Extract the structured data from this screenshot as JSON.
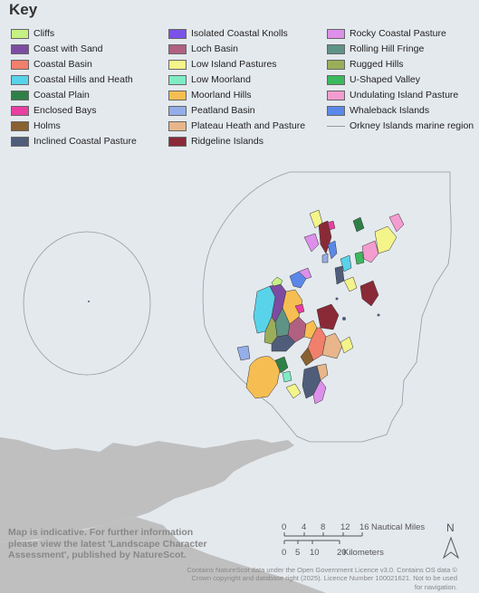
{
  "key": {
    "title": "Key",
    "items": [
      {
        "label": "Cliffs",
        "color": "#c6f184"
      },
      {
        "label": "Coast with Sand",
        "color": "#7d4ca2"
      },
      {
        "label": "Coastal Basin",
        "color": "#f07f6c"
      },
      {
        "label": "Coastal Hills and Heath",
        "color": "#58d3ea"
      },
      {
        "label": "Coastal Plain",
        "color": "#2f8046"
      },
      {
        "label": "Enclosed Bays",
        "color": "#e83fa1"
      },
      {
        "label": "Holms",
        "color": "#8a6130"
      },
      {
        "label": "Inclined Coastal Pasture",
        "color": "#4f5d7a"
      },
      {
        "label": "Isolated Coastal Knolls",
        "color": "#7b52e8"
      },
      {
        "label": "Loch Basin",
        "color": "#b06080"
      },
      {
        "label": "Low Island Pastures",
        "color": "#f3f48a"
      },
      {
        "label": "Low Moorland",
        "color": "#7fecc6"
      },
      {
        "label": "Moorland Hills",
        "color": "#f6be52"
      },
      {
        "label": "Peatland Basin",
        "color": "#94aee8"
      },
      {
        "label": "Plateau Heath and Pasture",
        "color": "#e8b68a"
      },
      {
        "label": "Ridgeline Islands",
        "color": "#8a2a37"
      },
      {
        "label": "Rocky Coastal Pasture",
        "color": "#dd90ea"
      },
      {
        "label": "Rolling Hill Fringe",
        "color": "#5f9385"
      },
      {
        "label": "Rugged Hills",
        "color": "#9aae5a"
      },
      {
        "label": "U-Shaped Valley",
        "color": "#3cb85e"
      },
      {
        "label": "Undulating Island Pasture",
        "color": "#f39ccf"
      },
      {
        "label": "Whaleback Islands",
        "color": "#5b88e8"
      },
      {
        "label": "Orkney Islands marine region",
        "color": "#999999",
        "style": "line"
      }
    ]
  },
  "map": {
    "sea_color": "#e4e9ee",
    "mainland_color": "#bfbfbf",
    "note": "Map is indicative. For further information please view the latest 'Landscape Character Assessment', published by NatureScot.",
    "north_arrow": "N",
    "scale": {
      "miles_label": "Nautical Miles",
      "miles_ticks": [
        "0",
        "4",
        "8",
        "12",
        "16"
      ],
      "km_label": "Kilometers",
      "km_ticks": [
        "0",
        "5",
        "10",
        "20"
      ]
    },
    "credits": "Contains NatureScot data under the Open Government Licence v3.0. Contains OS data © Crown copyright and database right (2025). Licence Number 100021621. Not to be used for navigation."
  }
}
